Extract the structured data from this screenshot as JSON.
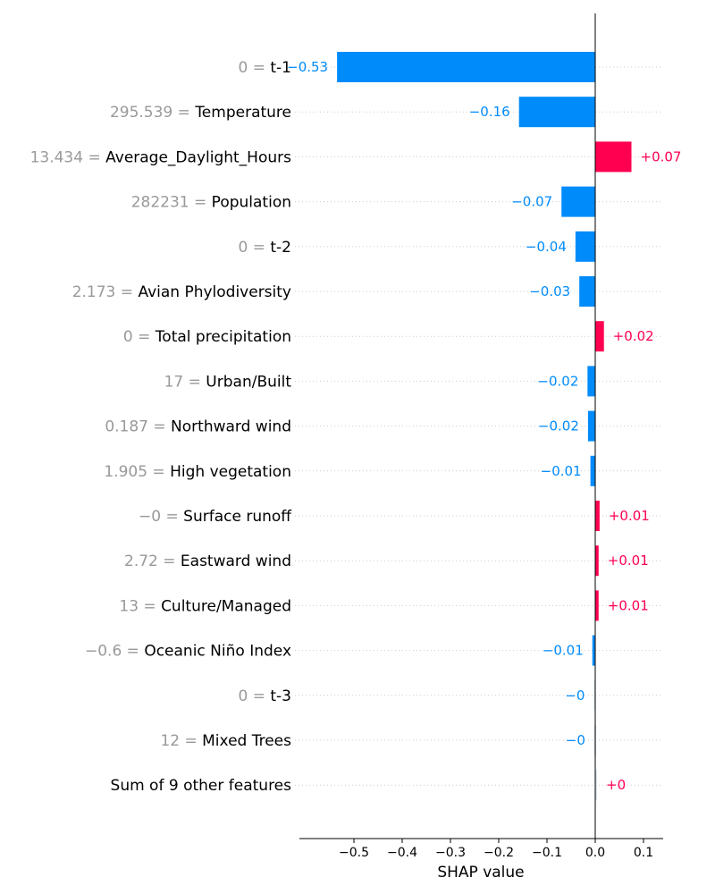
{
  "chart_data": {
    "type": "bar",
    "orientation": "horizontal",
    "title": "",
    "xlabel": "SHAP value",
    "xlim": [
      -0.6,
      0.14
    ],
    "xticks": [
      -0.5,
      -0.4,
      -0.3,
      -0.2,
      -0.1,
      0.0,
      0.1
    ],
    "xtick_labels": [
      "−0.5",
      "−0.4",
      "−0.3",
      "−0.2",
      "−0.1",
      "0.0",
      "0.1"
    ],
    "grid": "dotted horizontal row guides",
    "colors": {
      "positive": "#ff0051",
      "negative": "#008bfb",
      "tiny": "#d8e6ef",
      "text_value": "#999999"
    },
    "features": [
      {
        "value_text": "0",
        "name": "t-1",
        "shap": -0.535,
        "label": "−0.53"
      },
      {
        "value_text": "295.539",
        "name": "Temperature",
        "shap": -0.158,
        "label": "−0.16"
      },
      {
        "value_text": "13.434",
        "name": "Average_Daylight_Hours",
        "shap": 0.075,
        "label": "+0.07"
      },
      {
        "value_text": "282231",
        "name": "Population",
        "shap": -0.07,
        "label": "−0.07"
      },
      {
        "value_text": "0",
        "name": "t-2",
        "shap": -0.041,
        "label": "−0.04"
      },
      {
        "value_text": "2.173",
        "name": "Avian Phylodiversity",
        "shap": -0.033,
        "label": "−0.03"
      },
      {
        "value_text": "0",
        "name": "Total precipitation",
        "shap": 0.018,
        "label": "+0.02"
      },
      {
        "value_text": "17",
        "name": "Urban/Built",
        "shap": -0.016,
        "label": "−0.02"
      },
      {
        "value_text": "0.187",
        "name": "Northward wind",
        "shap": -0.015,
        "label": "−0.02"
      },
      {
        "value_text": "1.905",
        "name": "High vegetation",
        "shap": -0.01,
        "label": "−0.01"
      },
      {
        "value_text": "−0",
        "name": "Surface runoff",
        "shap": 0.009,
        "label": "+0.01"
      },
      {
        "value_text": "2.72",
        "name": "Eastward wind",
        "shap": 0.007,
        "label": "+0.01"
      },
      {
        "value_text": "13",
        "name": "Culture/Managed",
        "shap": 0.007,
        "label": "+0.01"
      },
      {
        "value_text": "−0.6",
        "name": "Oceanic Niño Index",
        "shap": -0.006,
        "label": "−0.01"
      },
      {
        "value_text": "0",
        "name": "t-3",
        "shap": -0.003,
        "label": "−0"
      },
      {
        "value_text": "12",
        "name": "Mixed Trees",
        "shap": -0.002,
        "label": "−0"
      },
      {
        "value_text": "",
        "name": "Sum of 9 other features",
        "shap": 0.002,
        "label": "+0"
      }
    ]
  }
}
